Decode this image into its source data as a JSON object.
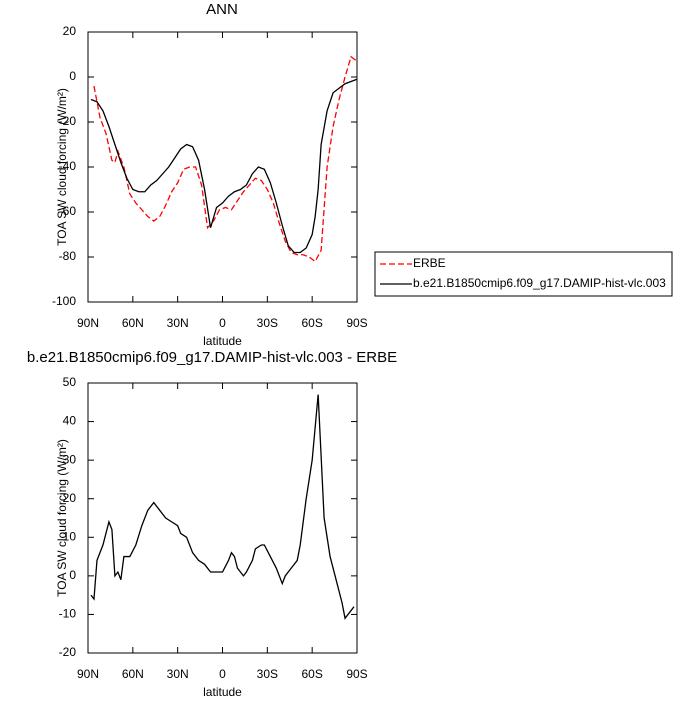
{
  "chart_data": [
    {
      "type": "line",
      "title": "ANN",
      "x_label": "latitude",
      "y_label": "TOA SW cloud forcing (W/m²)",
      "xlim": [
        90,
        -90
      ],
      "xticks": [
        {
          "value": 90,
          "label": "90N"
        },
        {
          "value": 60,
          "label": "60N"
        },
        {
          "value": 30,
          "label": "30N"
        },
        0,
        {
          "value": -30,
          "label": "30S"
        },
        {
          "value": -60,
          "label": "60S"
        },
        {
          "value": -90,
          "label": "90S"
        }
      ],
      "ylim": [
        -100,
        20
      ],
      "yticks": [
        -100,
        -80,
        -60,
        -40,
        -20,
        0,
        20
      ],
      "legend": "right",
      "series": [
        {
          "name": "ERBE",
          "color": "#ff0000",
          "dashed": true,
          "x": [
            86,
            82,
            78,
            74,
            72,
            70,
            66,
            62,
            58,
            54,
            50,
            46,
            42,
            38,
            34,
            30,
            26,
            22,
            18,
            14,
            10,
            6,
            2,
            -2,
            -6,
            -10,
            -14,
            -18,
            -22,
            -26,
            -30,
            -34,
            -38,
            -42,
            -46,
            -50,
            -54,
            -58,
            -62,
            -66,
            -70,
            -74,
            -78,
            -82,
            -86,
            -90
          ],
          "values": [
            -4,
            -18,
            -25,
            -37,
            -38,
            -33,
            -40,
            -52,
            -56,
            -59,
            -62,
            -64,
            -62,
            -57,
            -51,
            -47,
            -41,
            -40,
            -40,
            -48,
            -67,
            -64,
            -59,
            -58,
            -59,
            -55,
            -51,
            -48,
            -45,
            -46,
            -50,
            -56,
            -65,
            -73,
            -78,
            -79,
            -79,
            -80,
            -82,
            -77,
            -40,
            -22,
            -10,
            0,
            9,
            7
          ]
        },
        {
          "name": "b.e21.B1850cmip6.f09_g17.DAMIP-hist-vlc.003",
          "color": "#000000",
          "dashed": false,
          "x": [
            88,
            84,
            80,
            76,
            72,
            68,
            64,
            60,
            56,
            52,
            48,
            44,
            40,
            36,
            32,
            28,
            24,
            20,
            16,
            12,
            8,
            4,
            0,
            -4,
            -8,
            -12,
            -16,
            -20,
            -24,
            -28,
            -32,
            -36,
            -40,
            -44,
            -48,
            -52,
            -56,
            -60,
            -62,
            -64,
            -66,
            -70,
            -74,
            -78,
            -82,
            -86,
            -90
          ],
          "values": [
            -10,
            -11,
            -15,
            -22,
            -30,
            -38,
            -45,
            -50,
            -51,
            -51,
            -48,
            -46,
            -43,
            -40,
            -36,
            -32,
            -30,
            -31,
            -37,
            -50,
            -67,
            -58,
            -56,
            -53,
            -51,
            -50,
            -48,
            -43,
            -40,
            -41,
            -47,
            -56,
            -66,
            -75,
            -78,
            -78,
            -76,
            -70,
            -62,
            -50,
            -30,
            -15,
            -7,
            -5,
            -3,
            -2,
            -1
          ]
        }
      ]
    },
    {
      "type": "line",
      "title": "b.e21.B1850cmip6.f09_g17.DAMIP-hist-vlc.003 - ERBE",
      "x_label": "latitude",
      "y_label": "TOA SW cloud forcing (W/m²)",
      "xlim": [
        90,
        -90
      ],
      "xticks": [
        {
          "value": 90,
          "label": "90N"
        },
        {
          "value": 60,
          "label": "60N"
        },
        {
          "value": 30,
          "label": "30N"
        },
        0,
        {
          "value": -30,
          "label": "30S"
        },
        {
          "value": -60,
          "label": "60S"
        },
        {
          "value": -90,
          "label": "90S"
        }
      ],
      "ylim": [
        -20,
        50
      ],
      "yticks": [
        -20,
        -10,
        0,
        10,
        20,
        30,
        40,
        50
      ],
      "series": [
        {
          "color": "#000000",
          "dashed": false,
          "x": [
            88,
            86,
            84,
            80,
            76,
            74,
            72,
            70,
            68,
            66,
            62,
            58,
            54,
            50,
            46,
            42,
            38,
            34,
            30,
            28,
            24,
            20,
            16,
            12,
            8,
            4,
            0,
            -4,
            -6,
            -8,
            -10,
            -14,
            -16,
            -20,
            -22,
            -26,
            -28,
            -32,
            -36,
            -40,
            -42,
            -46,
            -50,
            -52,
            -56,
            -60,
            -64,
            -68,
            -72,
            -76,
            -80,
            -82,
            -84,
            -88
          ],
          "values": [
            -5,
            -6,
            4,
            8,
            14,
            12,
            0,
            1,
            -1,
            5,
            5,
            8,
            13,
            17,
            19,
            17,
            15,
            14,
            13,
            11,
            10,
            6,
            4,
            3,
            1,
            1,
            1,
            4,
            6,
            5,
            2,
            0,
            1,
            4,
            7,
            8,
            8,
            5,
            2,
            -2,
            0,
            2,
            4,
            8,
            20,
            30,
            47,
            15,
            5,
            -1,
            -7,
            -11,
            -10,
            -8
          ]
        }
      ]
    }
  ]
}
